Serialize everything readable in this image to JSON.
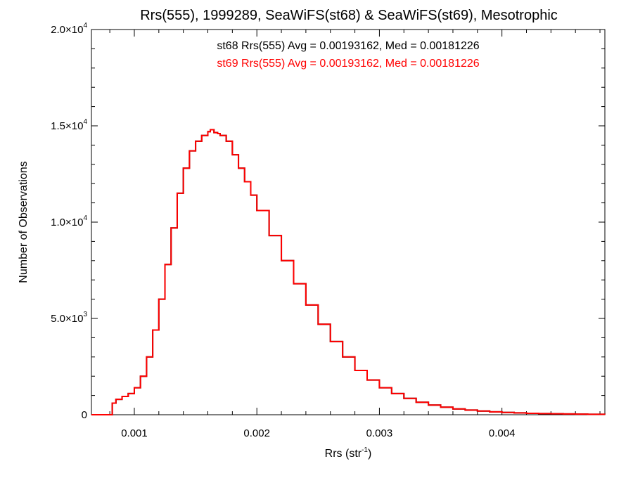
{
  "chart_data": {
    "type": "line",
    "title": "Rrs(555), 1999289, SeaWiFS(st68) & SeaWiFS(st69), Mesotrophic",
    "xlabel": "Rrs (str",
    "xlabel_sup": "-1",
    "xlabel_suffix": ")",
    "ylabel": "Number of Observations",
    "xlim": [
      0.00065,
      0.00484
    ],
    "ylim": [
      0,
      20000
    ],
    "x_ticks": [
      {
        "value": 0.001,
        "label": "0.001"
      },
      {
        "value": 0.002,
        "label": "0.002"
      },
      {
        "value": 0.003,
        "label": "0.003"
      },
      {
        "value": 0.004,
        "label": "0.004"
      }
    ],
    "y_ticks": [
      {
        "value": 0,
        "mant": "0",
        "exp": ""
      },
      {
        "value": 5000,
        "mant": "5.0×10",
        "exp": "3"
      },
      {
        "value": 10000,
        "mant": "1.0×10",
        "exp": "4"
      },
      {
        "value": 15000,
        "mant": "1.5×10",
        "exp": "4"
      },
      {
        "value": 20000,
        "mant": "2.0×10",
        "exp": "4"
      }
    ],
    "annotations": [
      {
        "text": "st68 Rrs(555) Avg = 0.00193162, Med = 0.00181226",
        "color": "#000000"
      },
      {
        "text": "st69 Rrs(555) Avg = 0.00193162, Med = 0.00181226",
        "color": "#ff0000"
      }
    ],
    "series": [
      {
        "name": "st68",
        "color": "#000000",
        "x": [
          0.00065,
          0.0008,
          0.00082,
          0.00085,
          0.0009,
          0.00095,
          0.001,
          0.00105,
          0.0011,
          0.00115,
          0.0012,
          0.00125,
          0.0013,
          0.00135,
          0.0014,
          0.00145,
          0.0015,
          0.00155,
          0.0016,
          0.00162,
          0.00165,
          0.00168,
          0.0017,
          0.00175,
          0.0018,
          0.00185,
          0.0019,
          0.00195,
          0.002,
          0.0021,
          0.0022,
          0.0023,
          0.0024,
          0.0025,
          0.0026,
          0.0027,
          0.0028,
          0.0029,
          0.003,
          0.0031,
          0.0032,
          0.0033,
          0.0034,
          0.0035,
          0.0036,
          0.0037,
          0.0038,
          0.0039,
          0.004,
          0.0041,
          0.0042,
          0.0043,
          0.0044,
          0.0045,
          0.0046,
          0.0047,
          0.00484
        ],
        "values": [
          0,
          0,
          600,
          800,
          950,
          1100,
          1400,
          2000,
          3000,
          4400,
          6000,
          7800,
          9700,
          11500,
          12800,
          13700,
          14200,
          14500,
          14700,
          14800,
          14650,
          14600,
          14500,
          14200,
          13500,
          12800,
          12100,
          11400,
          10600,
          9300,
          8000,
          6800,
          5700,
          4700,
          3800,
          3000,
          2300,
          1800,
          1400,
          1100,
          850,
          650,
          500,
          390,
          300,
          240,
          190,
          150,
          120,
          95,
          75,
          60,
          50,
          40,
          30,
          25,
          20
        ]
      },
      {
        "name": "st69",
        "color": "#ff0000",
        "x": [
          0.00065,
          0.0008,
          0.00082,
          0.00085,
          0.0009,
          0.00095,
          0.001,
          0.00105,
          0.0011,
          0.00115,
          0.0012,
          0.00125,
          0.0013,
          0.00135,
          0.0014,
          0.00145,
          0.0015,
          0.00155,
          0.0016,
          0.00162,
          0.00165,
          0.00168,
          0.0017,
          0.00175,
          0.0018,
          0.00185,
          0.0019,
          0.00195,
          0.002,
          0.0021,
          0.0022,
          0.0023,
          0.0024,
          0.0025,
          0.0026,
          0.0027,
          0.0028,
          0.0029,
          0.003,
          0.0031,
          0.0032,
          0.0033,
          0.0034,
          0.0035,
          0.0036,
          0.0037,
          0.0038,
          0.0039,
          0.004,
          0.0041,
          0.0042,
          0.0043,
          0.0044,
          0.0045,
          0.0046,
          0.0047,
          0.00484
        ],
        "values": [
          0,
          0,
          600,
          800,
          950,
          1100,
          1400,
          2000,
          3000,
          4400,
          6000,
          7800,
          9700,
          11500,
          12800,
          13700,
          14200,
          14500,
          14700,
          14800,
          14650,
          14600,
          14500,
          14200,
          13500,
          12800,
          12100,
          11400,
          10600,
          9300,
          8000,
          6800,
          5700,
          4700,
          3800,
          3000,
          2300,
          1800,
          1400,
          1100,
          850,
          650,
          500,
          390,
          300,
          240,
          190,
          150,
          120,
          95,
          75,
          60,
          50,
          40,
          30,
          25,
          20
        ]
      }
    ]
  }
}
